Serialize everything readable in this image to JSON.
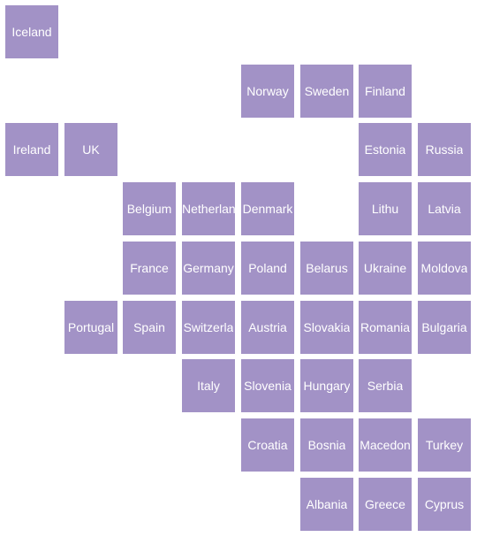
{
  "map": {
    "tile_color": "#a292c6",
    "text_color": "#ffffff",
    "countries": [
      {
        "label": "Iceland",
        "row": 0,
        "col": 0
      },
      {
        "label": "Norway",
        "row": 1,
        "col": 4
      },
      {
        "label": "Sweden",
        "row": 1,
        "col": 5
      },
      {
        "label": "Finland",
        "row": 1,
        "col": 6
      },
      {
        "label": "Ireland",
        "row": 2,
        "col": 0
      },
      {
        "label": "UK",
        "row": 2,
        "col": 1
      },
      {
        "label": "Estonia",
        "row": 2,
        "col": 6
      },
      {
        "label": "Russia",
        "row": 2,
        "col": 7
      },
      {
        "label": "Belgium",
        "row": 3,
        "col": 2
      },
      {
        "label": "Netherlan",
        "row": 3,
        "col": 3
      },
      {
        "label": "Denmark",
        "row": 3,
        "col": 4
      },
      {
        "label": "Lithu",
        "row": 3,
        "col": 6
      },
      {
        "label": "Latvia",
        "row": 3,
        "col": 7
      },
      {
        "label": "France",
        "row": 4,
        "col": 2
      },
      {
        "label": "Germany",
        "row": 4,
        "col": 3
      },
      {
        "label": "Poland",
        "row": 4,
        "col": 4
      },
      {
        "label": "Belarus",
        "row": 4,
        "col": 5
      },
      {
        "label": "Ukraine",
        "row": 4,
        "col": 6
      },
      {
        "label": "Moldova",
        "row": 4,
        "col": 7
      },
      {
        "label": "Portugal",
        "row": 5,
        "col": 1
      },
      {
        "label": "Spain",
        "row": 5,
        "col": 2
      },
      {
        "label": "Switzerla",
        "row": 5,
        "col": 3
      },
      {
        "label": "Austria",
        "row": 5,
        "col": 4
      },
      {
        "label": "Slovakia",
        "row": 5,
        "col": 5
      },
      {
        "label": "Romania",
        "row": 5,
        "col": 6
      },
      {
        "label": "Bulgaria",
        "row": 5,
        "col": 7
      },
      {
        "label": "Italy",
        "row": 6,
        "col": 3
      },
      {
        "label": "Slovenia",
        "row": 6,
        "col": 4
      },
      {
        "label": "Hungary",
        "row": 6,
        "col": 5
      },
      {
        "label": "Serbia",
        "row": 6,
        "col": 6
      },
      {
        "label": "Croatia",
        "row": 7,
        "col": 4
      },
      {
        "label": "Bosnia",
        "row": 7,
        "col": 5
      },
      {
        "label": "Macedon",
        "row": 7,
        "col": 6
      },
      {
        "label": "Turkey",
        "row": 7,
        "col": 7
      },
      {
        "label": "Albania",
        "row": 8,
        "col": 5
      },
      {
        "label": "Greece",
        "row": 8,
        "col": 6
      },
      {
        "label": "Cyprus",
        "row": 8,
        "col": 7
      }
    ]
  }
}
